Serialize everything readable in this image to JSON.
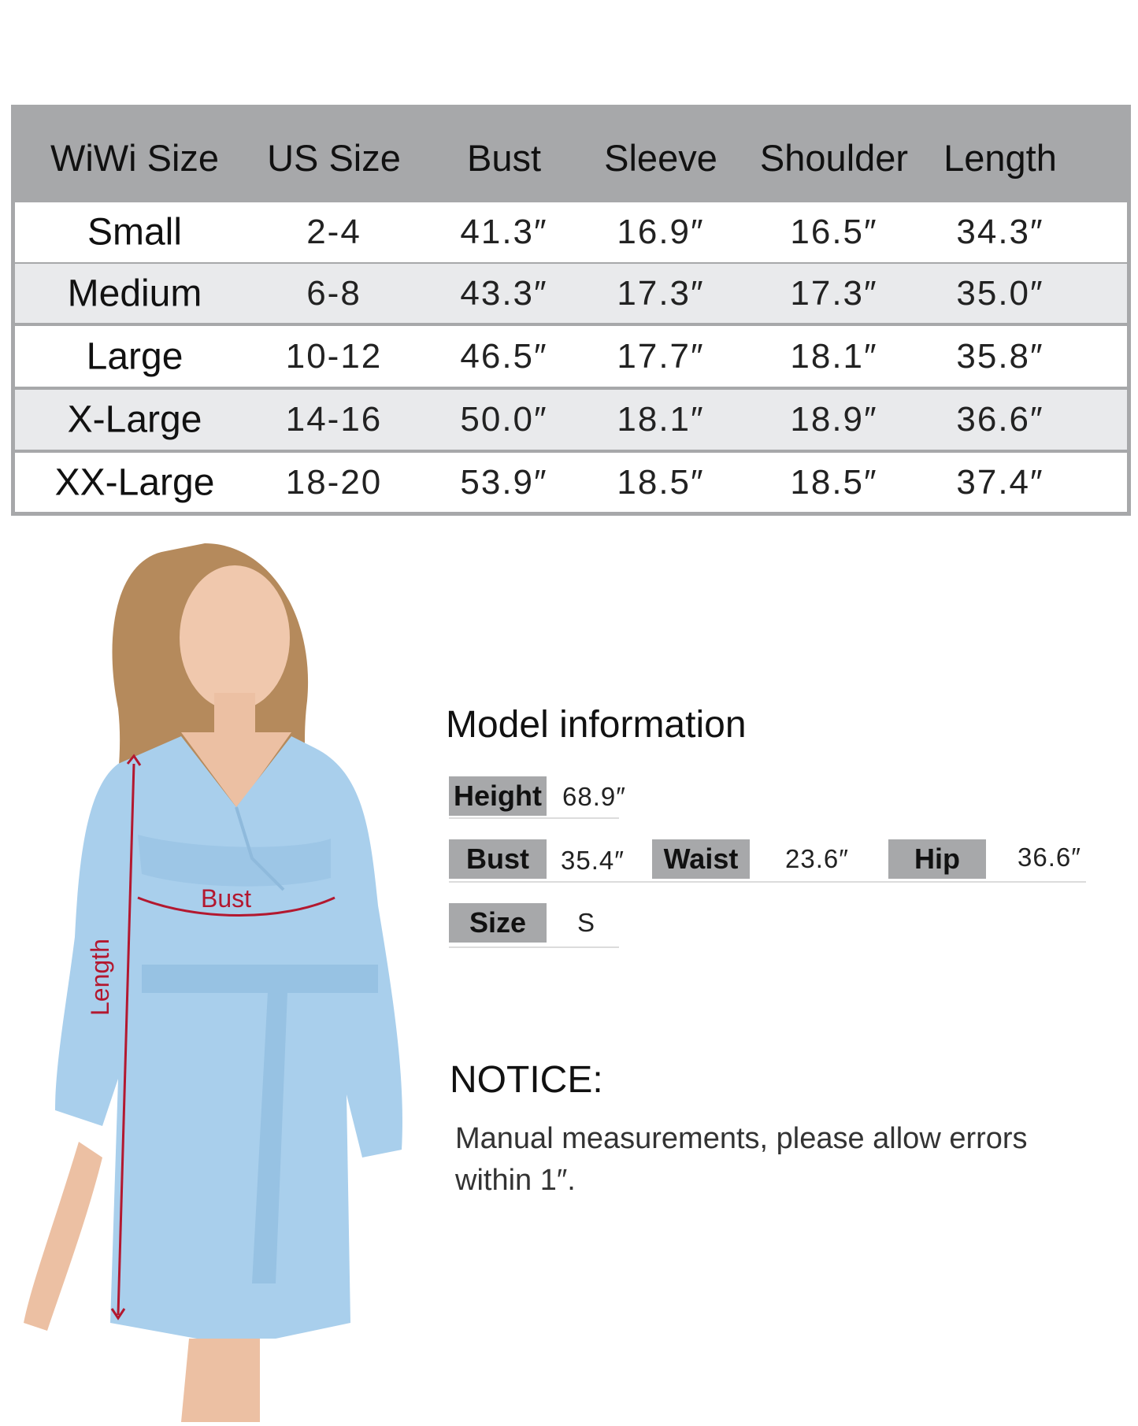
{
  "size_chart": {
    "headers": [
      "WiWi Size",
      "US Size",
      "Bust",
      "Sleeve",
      "Shoulder",
      "Length"
    ],
    "rows": [
      [
        "Small",
        "2-4",
        "41.3″",
        "16.9″",
        "16.5″",
        "34.3″"
      ],
      [
        "Medium",
        "6-8",
        "43.3″",
        "17.3″",
        "17.3″",
        "35.0″"
      ],
      [
        "Large",
        "10-12",
        "46.5″",
        "17.7″",
        "18.1″",
        "35.8″"
      ],
      [
        "X-Large",
        "14-16",
        "50.0″",
        "18.1″",
        "18.9″",
        "36.6″"
      ],
      [
        "XX-Large",
        "18-20",
        "53.9″",
        "18.5″",
        "18.5″",
        "37.4″"
      ]
    ]
  },
  "model_info": {
    "title": "Model information",
    "height_label": "Height",
    "height_value": "68.9″",
    "bust_label": "Bust",
    "bust_value": "35.4″",
    "waist_label": "Waist",
    "waist_value": "23.6″",
    "hip_label": "Hip",
    "hip_value": "36.6″",
    "size_label": "Size",
    "size_value": "S"
  },
  "notice": {
    "title": "NOTICE:",
    "text": "Manual measurements, please allow errors within 1″."
  },
  "model_photo": {
    "bust_marker": "Bust",
    "length_marker": "Length",
    "robe_color": "#a9cfec",
    "marker_color": "#b3182f"
  }
}
